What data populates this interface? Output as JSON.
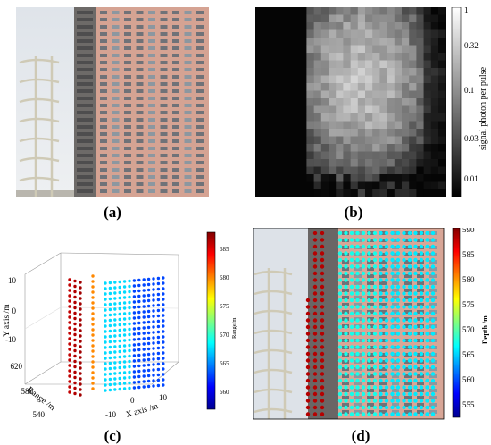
{
  "captions": {
    "a": "(a)",
    "b": "(b)",
    "c": "(c)",
    "d": "(d)"
  },
  "panel_b": {
    "colorbar_label": "signal photon per pulse",
    "colorbar_ticks": [
      "1",
      "0.32",
      "0.1",
      "0.03",
      "0.01"
    ]
  },
  "panel_c": {
    "colorbar_label": "Range/m",
    "colorbar_ticks": [
      "585",
      "580",
      "575",
      "570",
      "565",
      "560"
    ],
    "y_axis_label": "Y axis /m",
    "y_ticks": [
      "10",
      "0",
      "-10"
    ],
    "range_axis_label": "Range /m",
    "range_ticks": [
      "620",
      "580",
      "540"
    ],
    "x_axis_label": "X axis /m",
    "x_ticks": [
      "-10",
      "0",
      "10"
    ]
  },
  "panel_d": {
    "colorbar_label": "Depth /m",
    "colorbar_ticks": [
      "590",
      "585",
      "580",
      "575",
      "570",
      "565",
      "560",
      "555"
    ]
  },
  "colors": {
    "jet": [
      "#00008f",
      "#0000ff",
      "#0080ff",
      "#00ffff",
      "#80ff80",
      "#ffff00",
      "#ff8000",
      "#ff0000",
      "#800000"
    ],
    "building_pink": "#d9a696",
    "sky": "#e4e8ec"
  },
  "chart_data": [
    {
      "type": "heatmap",
      "title": "",
      "colorbar_label": "signal photon per pulse",
      "colorbar_scale": "log",
      "colorbar_range": [
        0.005,
        1
      ],
      "colorbar_ticks": [
        1,
        0.32,
        0.1,
        0.03,
        0.01
      ]
    },
    {
      "type": "scatter",
      "title": "",
      "xlabel": "X axis /m",
      "ylabel": "Y axis /m",
      "zlabel": "Range /m",
      "x_ticks": [
        -10,
        0,
        10
      ],
      "y_ticks": [
        -10,
        0,
        10
      ],
      "range_ticks": [
        540,
        580,
        620
      ],
      "colorbar_label": "Range/m",
      "colorbar_range": [
        557,
        588
      ],
      "colorbar_ticks": [
        560,
        565,
        570,
        575,
        580,
        585
      ],
      "series": [
        {
          "values": [
            586,
            587
          ]
        },
        {
          "values": [
            580
          ]
        },
        {
          "values": [
            567,
            568
          ]
        },
        {
          "values": [
            562,
            563
          ]
        }
      ]
    },
    {
      "type": "scatter",
      "title": "",
      "colorbar_label": "Depth /m",
      "colorbar_range": [
        552,
        590
      ],
      "colorbar_ticks": [
        590,
        585,
        580,
        575,
        570,
        565,
        560,
        555
      ],
      "series": [
        {
          "values": [
            588
          ]
        },
        {
          "values": [
            567,
            566
          ]
        }
      ]
    }
  ]
}
